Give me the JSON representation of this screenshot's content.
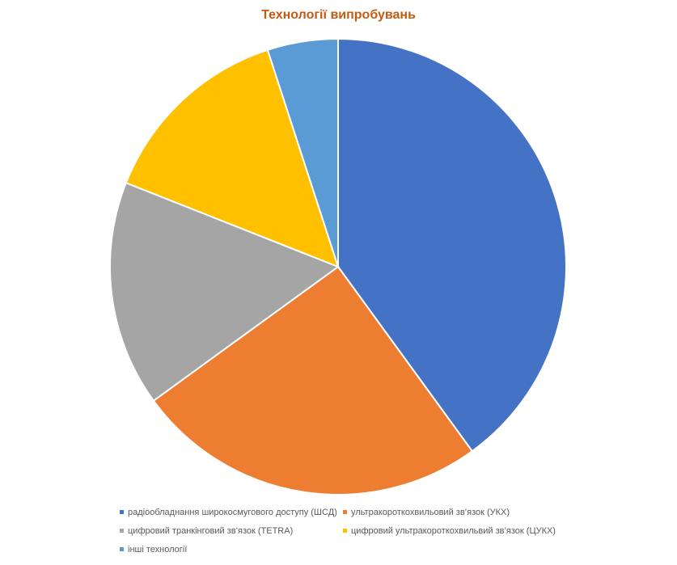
{
  "chart_data": {
    "type": "pie",
    "title": "Технології випробувань",
    "categories": [
      "радіообладнання широкосмугового доступу (ШСД)",
      "ультракороткохвильовий зв’язок (УКХ)",
      "цифровий транкінговий зв’язок (TETRA)",
      "цифровий ультракороткохвильвий зв’язок (ЦУКХ)",
      "інші технології"
    ],
    "values": [
      40,
      25,
      16,
      14,
      5
    ],
    "colors": [
      "#4472c4",
      "#ed7d31",
      "#a5a5a5",
      "#ffc000",
      "#5b9bd5"
    ],
    "legend_position": "bottom"
  }
}
